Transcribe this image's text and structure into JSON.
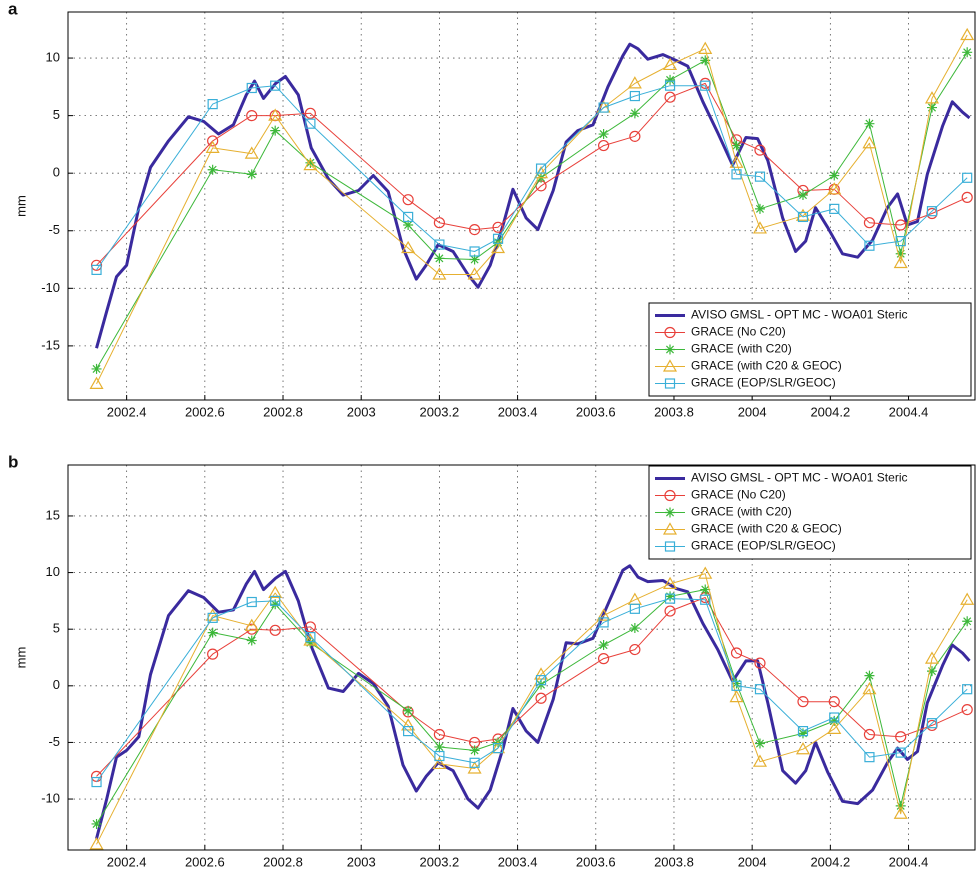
{
  "chart_data": [
    {
      "type": "line",
      "panel_label": "a",
      "ylabel": "mm",
      "xlim": [
        2002.25,
        2004.57
      ],
      "ylim": [
        -19.7,
        14
      ],
      "xticks": [
        2002.4,
        2002.6,
        2002.8,
        2003,
        2003.2,
        2003.4,
        2003.6,
        2003.8,
        2004,
        2004.2,
        2004.4
      ],
      "yticks": [
        -15,
        -10,
        -5,
        0,
        5,
        10
      ],
      "grid": true,
      "legend": "lower right",
      "series": [
        {
          "name": "AVISO GMSL - OPT MC - WOA01 Steric",
          "color": "#3a2a9e",
          "marker": "none",
          "linewidth": 3,
          "x": [
            2002.323,
            2002.349,
            2002.374,
            2002.4,
            2002.431,
            2002.461,
            2002.507,
            2002.558,
            2002.597,
            2002.635,
            2002.673,
            2002.706,
            2002.727,
            2002.75,
            2002.781,
            2002.806,
            2002.839,
            2002.872,
            2002.916,
            2002.954,
            2002.993,
            2003.031,
            2003.069,
            2003.107,
            2003.141,
            2003.166,
            2003.197,
            2003.235,
            2003.273,
            2003.299,
            2003.33,
            2003.363,
            2003.388,
            2003.422,
            2003.452,
            2003.491,
            2003.524,
            2003.554,
            2003.593,
            2003.631,
            2003.669,
            2003.687,
            2003.708,
            2003.733,
            2003.772,
            2003.805,
            2003.835,
            2003.874,
            2003.912,
            2003.95,
            2003.984,
            2004.014,
            2004.04,
            2004.078,
            2004.111,
            2004.137,
            2004.162,
            2004.193,
            2004.231,
            2004.27,
            2004.308,
            2004.346,
            2004.372,
            2004.397,
            2004.423,
            2004.448,
            2004.487,
            2004.512,
            2004.538,
            2004.556
          ],
          "values": [
            -15.2,
            -12,
            -9,
            -8,
            -3,
            0.5,
            2.8,
            4.9,
            4.5,
            3.4,
            4.2,
            6.8,
            8,
            6.5,
            7.8,
            8.4,
            6.8,
            2.2,
            -0.5,
            -1.9,
            -1.5,
            -0.2,
            -1.6,
            -6.5,
            -9.2,
            -8,
            -6.2,
            -6.8,
            -8.8,
            -9.9,
            -8,
            -4.5,
            -1.4,
            -3.9,
            -4.9,
            -1.5,
            2.7,
            3.7,
            4.2,
            7.5,
            10.2,
            11.2,
            10.8,
            9.9,
            10.3,
            9.8,
            9.3,
            6.2,
            3.5,
            0.7,
            3.1,
            3,
            1.1,
            -3.9,
            -6.8,
            -5.9,
            -3,
            -4.7,
            -7,
            -7.3,
            -5.8,
            -3,
            -1.8,
            -4.5,
            -4.2,
            -0.1,
            4.1,
            6.2,
            5.3,
            4.8
          ]
        },
        {
          "name": "GRACE (No C20)",
          "color": "#e8403a",
          "marker": "circle",
          "linewidth": 1,
          "x": [
            2002.323,
            2002.62,
            2002.72,
            2002.78,
            2002.87,
            2003.12,
            2003.2,
            2003.29,
            2003.35,
            2003.46,
            2003.62,
            2003.7,
            2003.79,
            2003.88,
            2003.96,
            2004.02,
            2004.13,
            2004.21,
            2004.3,
            2004.38,
            2004.46,
            2004.55
          ],
          "values": [
            -8,
            2.8,
            5,
            5,
            5.2,
            -2.3,
            -4.3,
            -4.9,
            -4.7,
            -1.1,
            2.4,
            3.2,
            6.6,
            7.8,
            2.9,
            2,
            -1.5,
            -1.4,
            -4.3,
            -4.5,
            -3.5,
            -2.1
          ]
        },
        {
          "name": "GRACE (with C20)",
          "color": "#3db83a",
          "marker": "star",
          "linewidth": 1,
          "x": [
            2002.323,
            2002.62,
            2002.72,
            2002.78,
            2002.87,
            2003.12,
            2003.2,
            2003.29,
            2003.35,
            2003.46,
            2003.62,
            2003.7,
            2003.79,
            2003.88,
            2003.96,
            2004.02,
            2004.13,
            2004.21,
            2004.3,
            2004.38,
            2004.46,
            2004.55
          ],
          "values": [
            -17,
            0.3,
            -0.1,
            3.7,
            0.9,
            -4.5,
            -7.4,
            -7.5,
            -6,
            -0.4,
            3.4,
            5.2,
            8.1,
            9.8,
            2.4,
            -3.1,
            -1.9,
            -0.2,
            4.3,
            -7,
            5.7,
            10.5
          ]
        },
        {
          "name": "GRACE (with C20 & GEOC)",
          "color": "#e6b030",
          "marker": "triangle",
          "linewidth": 1,
          "x": [
            2002.323,
            2002.62,
            2002.72,
            2002.78,
            2002.87,
            2003.12,
            2003.2,
            2003.29,
            2003.35,
            2003.46,
            2003.62,
            2003.7,
            2003.79,
            2003.88,
            2003.96,
            2004.02,
            2004.13,
            2004.21,
            2004.3,
            2004.38,
            2004.46,
            2004.55
          ],
          "values": [
            -18.3,
            2.2,
            1.7,
            5,
            0.7,
            -6.5,
            -8.8,
            -8.8,
            -6.5,
            0,
            5.7,
            7.8,
            9.4,
            10.8,
            0.9,
            -4.8,
            -3.7,
            -1.4,
            2.6,
            -7.8,
            6.5,
            12
          ]
        },
        {
          "name": "GRACE (EOP/SLR/GEOC)",
          "color": "#3aafd8",
          "marker": "square",
          "linewidth": 1,
          "x": [
            2002.323,
            2002.62,
            2002.72,
            2002.78,
            2002.87,
            2003.12,
            2003.2,
            2003.29,
            2003.35,
            2003.46,
            2003.62,
            2003.7,
            2003.79,
            2003.88,
            2003.96,
            2004.02,
            2004.13,
            2004.21,
            2004.3,
            2004.38,
            2004.46,
            2004.55
          ],
          "values": [
            -8.4,
            6,
            7.4,
            7.6,
            4.3,
            -3.8,
            -6.2,
            -6.8,
            -5.7,
            0.4,
            5.7,
            6.7,
            7.6,
            7.6,
            -0.1,
            -0.3,
            -3.8,
            -3.1,
            -6.3,
            -5.9,
            -3.3,
            -0.4
          ]
        }
      ]
    },
    {
      "type": "line",
      "panel_label": "b",
      "ylabel": "mm",
      "xlim": [
        2002.25,
        2004.57
      ],
      "ylim": [
        -14.5,
        19.5
      ],
      "xticks": [
        2002.4,
        2002.6,
        2002.8,
        2003,
        2003.2,
        2003.4,
        2003.6,
        2003.8,
        2004,
        2004.2,
        2004.4
      ],
      "yticks": [
        -10,
        -5,
        0,
        5,
        10,
        15
      ],
      "grid": true,
      "legend": "upper right",
      "series": [
        {
          "name": "AVISO GMSL - OPT MC - WOA01 Steric",
          "color": "#3a2a9e",
          "marker": "none",
          "linewidth": 3,
          "x": [
            2002.323,
            2002.349,
            2002.374,
            2002.4,
            2002.431,
            2002.461,
            2002.507,
            2002.558,
            2002.597,
            2002.635,
            2002.673,
            2002.706,
            2002.727,
            2002.75,
            2002.781,
            2002.806,
            2002.839,
            2002.872,
            2002.916,
            2002.954,
            2002.993,
            2003.031,
            2003.069,
            2003.107,
            2003.141,
            2003.166,
            2003.197,
            2003.235,
            2003.273,
            2003.299,
            2003.33,
            2003.363,
            2003.388,
            2003.422,
            2003.452,
            2003.491,
            2003.524,
            2003.554,
            2003.593,
            2003.631,
            2003.669,
            2003.687,
            2003.708,
            2003.733,
            2003.772,
            2003.805,
            2003.835,
            2003.874,
            2003.912,
            2003.95,
            2003.984,
            2004.014,
            2004.04,
            2004.078,
            2004.111,
            2004.137,
            2004.162,
            2004.193,
            2004.231,
            2004.27,
            2004.308,
            2004.346,
            2004.372,
            2004.397,
            2004.423,
            2004.448,
            2004.487,
            2004.512,
            2004.538,
            2004.556
          ],
          "values": [
            -13.5,
            -10,
            -6.3,
            -5.7,
            -4.5,
            1,
            6.2,
            8.4,
            7.8,
            6.5,
            6.7,
            9,
            10.1,
            8.5,
            9.5,
            10.1,
            7.5,
            3.5,
            -0.2,
            -0.5,
            1.1,
            0.2,
            -1.8,
            -7,
            -9.3,
            -8,
            -6.8,
            -7.5,
            -10,
            -10.8,
            -9.2,
            -5.5,
            -2,
            -4,
            -5,
            -1.2,
            3.8,
            3.7,
            4.2,
            7.2,
            10.2,
            10.6,
            9.6,
            9.2,
            9.3,
            8.6,
            8.3,
            5.5,
            3.2,
            0.4,
            2.2,
            2.2,
            -1.5,
            -7.5,
            -8.6,
            -7.5,
            -5,
            -7.6,
            -10.2,
            -10.4,
            -9.2,
            -6.8,
            -5.5,
            -6.5,
            -5.8,
            -1.5,
            1.8,
            3.6,
            2.9,
            2.2
          ]
        },
        {
          "name": "GRACE (No C20)",
          "color": "#e8403a",
          "marker": "circle",
          "linewidth": 1,
          "x": [
            2002.323,
            2002.62,
            2002.72,
            2002.78,
            2002.87,
            2003.12,
            2003.2,
            2003.29,
            2003.35,
            2003.46,
            2003.62,
            2003.7,
            2003.79,
            2003.88,
            2003.96,
            2004.02,
            2004.13,
            2004.21,
            2004.3,
            2004.38,
            2004.46,
            2004.55
          ],
          "values": [
            -8,
            2.8,
            5,
            4.9,
            5.2,
            -2.3,
            -4.3,
            -5,
            -4.7,
            -1.1,
            2.4,
            3.2,
            6.6,
            7.8,
            2.9,
            2,
            -1.4,
            -1.4,
            -4.3,
            -4.5,
            -3.5,
            -2.1
          ]
        },
        {
          "name": "GRACE (with C20)",
          "color": "#3db83a",
          "marker": "star",
          "linewidth": 1,
          "x": [
            2002.323,
            2002.62,
            2002.72,
            2002.78,
            2002.87,
            2003.12,
            2003.2,
            2003.29,
            2003.35,
            2003.46,
            2003.62,
            2003.7,
            2003.79,
            2003.88,
            2003.96,
            2004.02,
            2004.13,
            2004.21,
            2004.3,
            2004.38,
            2004.46,
            2004.55
          ],
          "values": [
            -12.2,
            4.7,
            4,
            7.2,
            3.8,
            -2.2,
            -5.4,
            -5.7,
            -5,
            0.1,
            3.6,
            5.1,
            7.9,
            8.5,
            0.2,
            -5.1,
            -4.2,
            -3.1,
            0.9,
            -10.6,
            1.3,
            5.7
          ]
        },
        {
          "name": "GRACE (with C20 & GEOC)",
          "color": "#e6b030",
          "marker": "triangle",
          "linewidth": 1,
          "x": [
            2002.323,
            2002.62,
            2002.72,
            2002.78,
            2002.87,
            2003.12,
            2003.2,
            2003.29,
            2003.35,
            2003.46,
            2003.62,
            2003.7,
            2003.79,
            2003.88,
            2003.96,
            2004.02,
            2004.13,
            2004.21,
            2004.3,
            2004.38,
            2004.46,
            2004.55
          ],
          "values": [
            -14,
            6.2,
            5.3,
            8.2,
            4,
            -3.5,
            -6.9,
            -7.3,
            -5.5,
            1,
            6.2,
            7.6,
            9,
            9.9,
            -1,
            -6.7,
            -5.6,
            -3.8,
            -0.3,
            -11.3,
            2.4,
            7.6
          ]
        },
        {
          "name": "GRACE (EOP/SLR/GEOC)",
          "color": "#3aafd8",
          "marker": "square",
          "linewidth": 1,
          "x": [
            2002.323,
            2002.62,
            2002.72,
            2002.78,
            2002.87,
            2003.12,
            2003.2,
            2003.29,
            2003.35,
            2003.46,
            2003.62,
            2003.7,
            2003.79,
            2003.88,
            2003.96,
            2004.02,
            2004.13,
            2004.21,
            2004.3,
            2004.38,
            2004.46,
            2004.55
          ],
          "values": [
            -8.5,
            6,
            7.4,
            7.5,
            4.3,
            -4,
            -6.2,
            -6.8,
            -5.5,
            0.5,
            5.6,
            6.8,
            7.7,
            7.6,
            0,
            -0.3,
            -4,
            -2.8,
            -6.3,
            -5.9,
            -3.3,
            -0.3
          ]
        }
      ]
    }
  ]
}
